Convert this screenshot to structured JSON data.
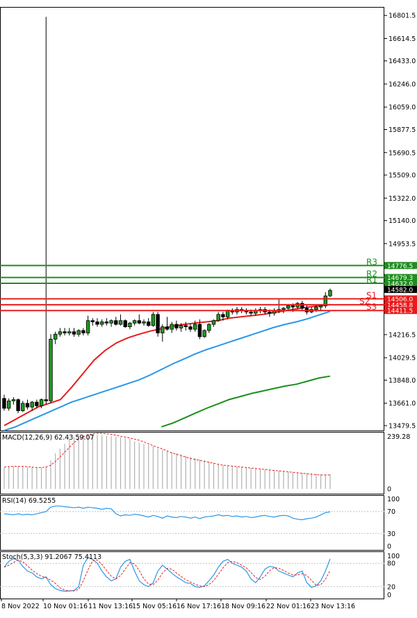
{
  "chart_data": {
    "type": "candlestick",
    "price_axis": {
      "ticks": [
        "16801.5",
        "16614.5",
        "16433.0",
        "16246.0",
        "16059.0",
        "15877.5",
        "15690.5",
        "15509.0",
        "15322.0",
        "15140.0",
        "14953.5",
        "14766.5",
        "14216.5",
        "14029.5",
        "13848.0",
        "13661.0",
        "13479.5"
      ],
      "range": [
        13440,
        16870
      ]
    },
    "time_axis": {
      "labels": [
        "8 Nov 2022",
        "10 Nov 01:16",
        "11 Nov 13:16",
        "15 Nov 05:16",
        "16 Nov 17:16",
        "18 Nov 09:16",
        "22 Nov 01:16",
        "23 Nov 13:16"
      ]
    },
    "levels": [
      {
        "name": "R3",
        "value": 14776.5,
        "value_label": "14776.5",
        "color": "#1e8e1e"
      },
      {
        "name": "R2",
        "value": 14679.3,
        "value_label": "14679.3",
        "color": "#1e8e1e"
      },
      {
        "name": "R1",
        "value": 14632.0,
        "value_label": "14632.0",
        "color": "#1e8e1e"
      },
      {
        "name": "",
        "value": 14582.0,
        "value_label": "14582.0",
        "color": "#000000"
      },
      {
        "name": "S1",
        "value": 14506.0,
        "value_label": "14506.0",
        "color": "#e81b1b"
      },
      {
        "name": "S2",
        "value": 14458.8,
        "value_label": "14458.8",
        "color": "#e81b1b"
      },
      {
        "name": "S3",
        "value": 14411.5,
        "value_label": "14411.5",
        "color": "#e81b1b"
      }
    ],
    "candles": [
      [
        13700,
        13730,
        13600,
        13620
      ],
      [
        13620,
        13700,
        13600,
        13680
      ],
      [
        13680,
        13710,
        13650,
        13690
      ],
      [
        13690,
        13700,
        13580,
        13600
      ],
      [
        13600,
        13680,
        13590,
        13660
      ],
      [
        13660,
        13690,
        13610,
        13630
      ],
      [
        13630,
        13680,
        13600,
        13670
      ],
      [
        13670,
        13690,
        13620,
        13640
      ],
      [
        13640,
        13700,
        13620,
        13690
      ],
      [
        13690,
        16790,
        13650,
        13680
      ],
      [
        13680,
        14220,
        13660,
        14180
      ],
      [
        14180,
        14240,
        14140,
        14220
      ],
      [
        14220,
        14270,
        14200,
        14240
      ],
      [
        14240,
        14270,
        14210,
        14230
      ],
      [
        14230,
        14270,
        14210,
        14240
      ],
      [
        14240,
        14270,
        14200,
        14220
      ],
      [
        14220,
        14260,
        14200,
        14250
      ],
      [
        14250,
        14270,
        14210,
        14230
      ],
      [
        14230,
        14370,
        14210,
        14330
      ],
      [
        14330,
        14350,
        14290,
        14320
      ],
      [
        14320,
        14350,
        14280,
        14300
      ],
      [
        14300,
        14340,
        14280,
        14320
      ],
      [
        14320,
        14350,
        14290,
        14310
      ],
      [
        14310,
        14340,
        14280,
        14330
      ],
      [
        14330,
        14360,
        14290,
        14300
      ],
      [
        14300,
        14380,
        14290,
        14330
      ],
      [
        14330,
        14340,
        14270,
        14280
      ],
      [
        14280,
        14320,
        14260,
        14310
      ],
      [
        14310,
        14340,
        14290,
        14330
      ],
      [
        14330,
        14380,
        14300,
        14310
      ],
      [
        14310,
        14340,
        14290,
        14320
      ],
      [
        14320,
        14350,
        14280,
        14290
      ],
      [
        14290,
        14400,
        14280,
        14380
      ],
      [
        14380,
        14400,
        14200,
        14230
      ],
      [
        14230,
        14300,
        14160,
        14280
      ],
      [
        14280,
        14360,
        14250,
        14260
      ],
      [
        14260,
        14320,
        14230,
        14300
      ],
      [
        14300,
        14330,
        14250,
        14270
      ],
      [
        14270,
        14310,
        14240,
        14290
      ],
      [
        14290,
        14320,
        14250,
        14280
      ],
      [
        14280,
        14300,
        14240,
        14260
      ],
      [
        14260,
        14330,
        14240,
        14300
      ],
      [
        14300,
        14340,
        14180,
        14200
      ],
      [
        14200,
        14260,
        14190,
        14250
      ],
      [
        14250,
        14310,
        14230,
        14300
      ],
      [
        14300,
        14340,
        14280,
        14330
      ],
      [
        14330,
        14400,
        14320,
        14380
      ],
      [
        14380,
        14400,
        14330,
        14360
      ],
      [
        14360,
        14420,
        14340,
        14410
      ],
      [
        14410,
        14430,
        14380,
        14400
      ],
      [
        14400,
        14440,
        14380,
        14420
      ],
      [
        14420,
        14440,
        14390,
        14410
      ],
      [
        14410,
        14430,
        14380,
        14400
      ],
      [
        14400,
        14420,
        14370,
        14390
      ],
      [
        14390,
        14430,
        14370,
        14410
      ],
      [
        14410,
        14440,
        14390,
        14420
      ],
      [
        14420,
        14440,
        14380,
        14400
      ],
      [
        14400,
        14420,
        14360,
        14390
      ],
      [
        14390,
        14430,
        14370,
        14410
      ],
      [
        14410,
        14500,
        14390,
        14420
      ],
      [
        14420,
        14440,
        14390,
        14430
      ],
      [
        14430,
        14460,
        14410,
        14450
      ],
      [
        14450,
        14470,
        14400,
        14440
      ],
      [
        14440,
        14480,
        14420,
        14470
      ],
      [
        14470,
        14490,
        14410,
        14430
      ],
      [
        14430,
        14460,
        14380,
        14400
      ],
      [
        14400,
        14440,
        14390,
        14420
      ],
      [
        14420,
        14450,
        14400,
        14440
      ],
      [
        14440,
        14460,
        14410,
        14450
      ],
      [
        14450,
        14560,
        14430,
        14530
      ],
      [
        14530,
        14590,
        14520,
        14575
      ]
    ],
    "ma": [
      {
        "name": "MA20",
        "color": "#e81b1b",
        "values": [
          13480,
          13530,
          13580,
          13630,
          13660,
          13690,
          13790,
          13900,
          14010,
          14090,
          14150,
          14190,
          14220,
          14245,
          14265,
          14285,
          14300,
          14310,
          14320,
          14330,
          14350,
          14360,
          14370,
          14380,
          14395,
          14410,
          14425,
          14440,
          14450,
          14460
        ]
      },
      {
        "name": "MA50",
        "color": "#2b96e6",
        "values": [
          13440,
          13470,
          13510,
          13550,
          13590,
          13630,
          13670,
          13700,
          13730,
          13760,
          13790,
          13820,
          13850,
          13890,
          13935,
          13980,
          14020,
          14060,
          14095,
          14125,
          14155,
          14185,
          14215,
          14245,
          14275,
          14300,
          14320,
          14345,
          14375,
          14405
        ]
      },
      {
        "name": "MA100",
        "color": "#1b8e1b",
        "values": [
          null,
          null,
          null,
          null,
          null,
          null,
          null,
          null,
          null,
          null,
          null,
          null,
          null,
          null,
          13470,
          13500,
          13540,
          13580,
          13620,
          13655,
          13690,
          13715,
          13740,
          13760,
          13780,
          13800,
          13815,
          13840,
          13865,
          13880
        ]
      }
    ],
    "macd": {
      "title": "MACD(12,26,9) 62.43 59.07",
      "ticks": [
        "239.28",
        "0"
      ],
      "range": [
        -20,
        240
      ],
      "histogram": [
        90,
        95,
        95,
        95,
        95,
        92,
        90,
        90,
        90,
        95,
        120,
        150,
        170,
        190,
        210,
        220,
        225,
        228,
        230,
        230,
        228,
        226,
        224,
        222,
        220,
        218,
        214,
        210,
        200,
        195,
        190,
        185,
        180,
        170,
        165,
        160,
        155,
        150,
        145,
        140,
        135,
        130,
        125,
        120,
        115,
        110,
        105,
        100,
        98,
        96,
        94,
        92,
        90,
        88,
        86,
        84,
        82,
        80,
        78,
        76,
        74,
        72,
        70,
        68,
        67,
        66,
        65,
        64,
        63,
        62,
        62
      ],
      "signal": [
        92,
        94,
        95,
        95,
        95,
        94,
        92,
        90,
        90,
        92,
        100,
        115,
        135,
        155,
        175,
        195,
        210,
        220,
        228,
        232,
        234,
        234,
        232,
        230,
        226,
        222,
        218,
        214,
        210,
        205,
        198,
        190,
        182,
        175,
        168,
        160,
        152,
        146,
        140,
        134,
        128,
        124,
        120,
        116,
        112,
        108,
        104,
        100,
        98,
        96,
        94,
        92,
        90,
        88,
        86,
        84,
        82,
        80,
        78,
        76,
        74,
        72,
        70,
        68,
        66,
        64,
        62,
        60,
        59,
        59,
        59
      ]
    },
    "rsi": {
      "title": "RSI(14) 69.5255",
      "ticks": [
        "100",
        "70",
        "30",
        "0"
      ],
      "range": [
        0,
        100
      ],
      "values": [
        66,
        65,
        64,
        66,
        64,
        65,
        64,
        66,
        68,
        70,
        78,
        80,
        80,
        79,
        78,
        77,
        78,
        76,
        78,
        77,
        76,
        74,
        76,
        75,
        66,
        62,
        64,
        63,
        65,
        64,
        62,
        60,
        63,
        61,
        58,
        62,
        60,
        59,
        61,
        60,
        58,
        60,
        57,
        60,
        61,
        62,
        64,
        62,
        63,
        61,
        62,
        60,
        61,
        59,
        60,
        62,
        63,
        61,
        60,
        62,
        63,
        62,
        58,
        56,
        55,
        57,
        58,
        60,
        64,
        68,
        69.5
      ]
    },
    "stoch": {
      "title": "Stoch(5,3,3) 91.2067 75.4113",
      "ticks": [
        "100",
        "80",
        "20",
        "0"
      ],
      "range": [
        0,
        100
      ],
      "k": [
        70,
        85,
        92,
        88,
        72,
        60,
        55,
        45,
        40,
        45,
        25,
        15,
        10,
        8,
        9,
        10,
        20,
        75,
        95,
        90,
        80,
        60,
        45,
        35,
        40,
        70,
        85,
        90,
        60,
        35,
        25,
        20,
        30,
        60,
        75,
        65,
        55,
        45,
        38,
        30,
        28,
        20,
        18,
        22,
        35,
        50,
        70,
        85,
        90,
        80,
        75,
        70,
        60,
        40,
        30,
        45,
        65,
        72,
        70,
        60,
        55,
        50,
        45,
        55,
        60,
        30,
        18,
        22,
        35,
        60,
        91
      ]
    }
  }
}
